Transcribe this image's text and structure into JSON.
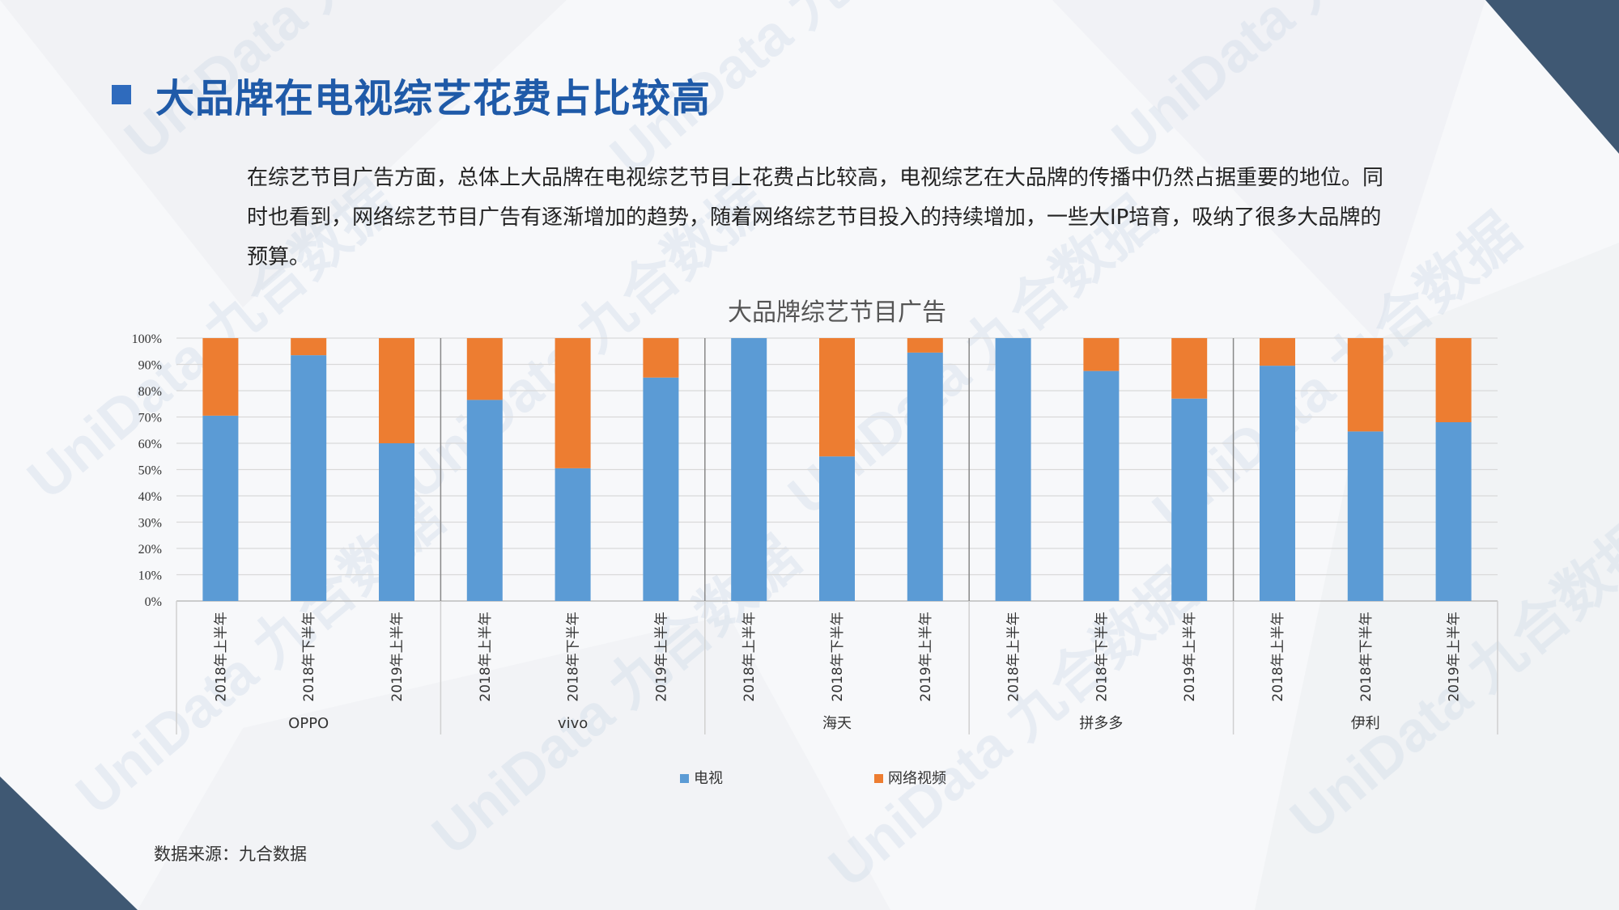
{
  "page": {
    "title": "大品牌在电视综艺花费占比较高",
    "paragraph": "在综艺节目广告方面，总体上大品牌在电视综艺节目上花费占比较高，电视综艺在大品牌的传播中仍然占据重要的地位。同时也看到，网络综艺节目广告有逐渐增加的趋势，随着网络综艺节目投入的持续增加，一些大IP培育，吸纳了很多大品牌的预算。",
    "source": "数据来源：九合数据",
    "watermark": "UniData 九合数据"
  },
  "colors": {
    "title": "#1f5aa8",
    "tv": "#5b9bd5",
    "online": "#ed7d31",
    "dark_corner": "#3f5873"
  },
  "chart_data": {
    "type": "bar",
    "stacked": true,
    "title": "大品牌综艺节目广告",
    "ylim": [
      0,
      100
    ],
    "y_ticks": [
      "0%",
      "10%",
      "20%",
      "30%",
      "40%",
      "50%",
      "60%",
      "70%",
      "80%",
      "90%",
      "100%"
    ],
    "grid": true,
    "legend_position": "bottom",
    "groups": [
      {
        "name": "OPPO",
        "categories": [
          "2018年上半年",
          "2018年下半年",
          "2019年上半年"
        ]
      },
      {
        "name": "vivo",
        "categories": [
          "2018年上半年",
          "2018年下半年",
          "2019年上半年"
        ]
      },
      {
        "name": "海天",
        "categories": [
          "2018年上半年",
          "2018年下半年",
          "2019年上半年"
        ]
      },
      {
        "name": "拼多多",
        "categories": [
          "2018年上半年",
          "2018年下半年",
          "2019年上半年"
        ]
      },
      {
        "name": "伊利",
        "categories": [
          "2018年上半年",
          "2018年下半年",
          "2019年上半年"
        ]
      }
    ],
    "series": [
      {
        "name": "电视",
        "values": [
          70.5,
          93.5,
          60,
          76.5,
          50.5,
          85,
          100,
          55,
          94.5,
          100,
          87.5,
          77,
          89.5,
          64.5,
          68
        ]
      },
      {
        "name": "网络视频",
        "values": [
          29.5,
          6.5,
          40,
          23.5,
          49.5,
          15,
          0,
          45,
          5.5,
          0,
          12.5,
          23,
          10.5,
          35.5,
          32
        ]
      }
    ]
  }
}
